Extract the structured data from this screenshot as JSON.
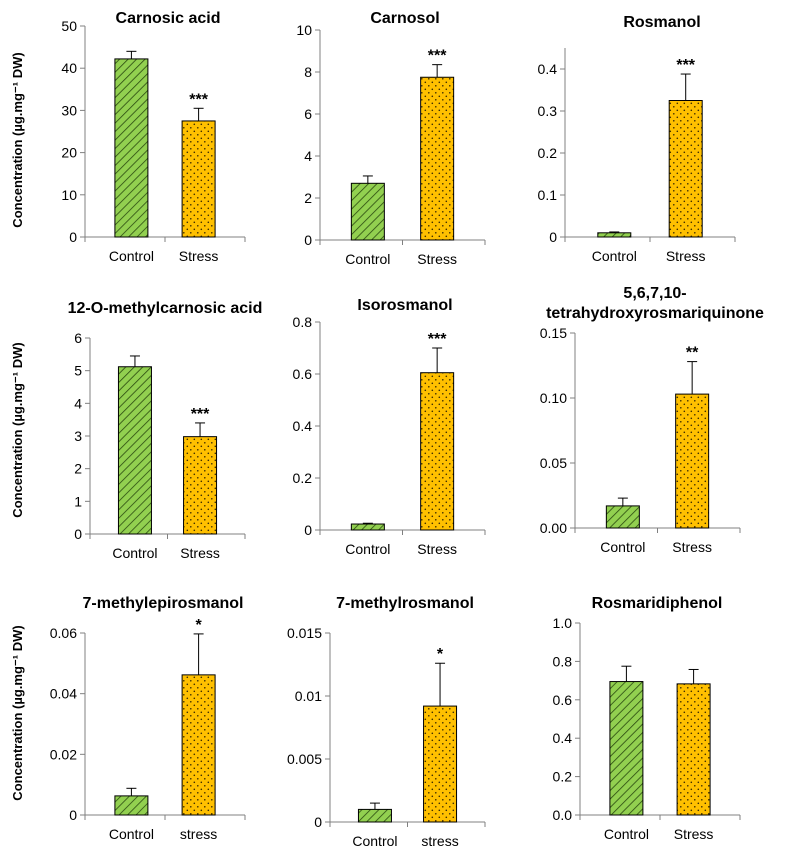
{
  "colors": {
    "control": "#92d050",
    "stress": "#ffc000",
    "outline": "#000000",
    "axis": "#808080"
  },
  "y_axis_label": "Concentration (µg.mg⁻¹ DW)",
  "chart_data": [
    {
      "type": "bar",
      "title": "Carnosic acid",
      "categories": [
        "Control",
        "Stress"
      ],
      "values": [
        42.2,
        27.5
      ],
      "errors": [
        1.8,
        3.0
      ],
      "significance": [
        "",
        "***"
      ],
      "ylim": [
        0,
        50
      ],
      "yticks": [
        "0",
        "10",
        "20",
        "30",
        "40",
        "50"
      ]
    },
    {
      "type": "bar",
      "title": "Carnosol",
      "categories": [
        "Control",
        "Stress"
      ],
      "values": [
        2.7,
        7.75
      ],
      "errors": [
        0.35,
        0.6
      ],
      "significance": [
        "",
        "***"
      ],
      "ylim": [
        0,
        10
      ],
      "yticks": [
        "0",
        "2",
        "4",
        "6",
        "8",
        "10"
      ]
    },
    {
      "type": "bar",
      "title": "Rosmanol",
      "categories": [
        "Control",
        "Stress"
      ],
      "values": [
        0.01,
        0.325
      ],
      "errors": [
        0.002,
        0.063
      ],
      "significance": [
        "",
        "***"
      ],
      "ylim": [
        0,
        0.45
      ],
      "yticks": [
        "0",
        "0.1",
        "0.2",
        "0.3",
        "0.4"
      ]
    },
    {
      "type": "bar",
      "title": "12-O-methylcarnosic acid",
      "categories": [
        "Control",
        "Stress"
      ],
      "values": [
        5.12,
        2.98
      ],
      "errors": [
        0.33,
        0.42
      ],
      "significance": [
        "",
        "***"
      ],
      "ylim": [
        0,
        6
      ],
      "yticks": [
        "0",
        "1",
        "2",
        "3",
        "4",
        "5",
        "6"
      ]
    },
    {
      "type": "bar",
      "title": "Isorosmanol",
      "categories": [
        "Control",
        "Stress"
      ],
      "values": [
        0.023,
        0.605
      ],
      "errors": [
        0.003,
        0.095
      ],
      "significance": [
        "",
        "***"
      ],
      "ylim": [
        0,
        0.8
      ],
      "yticks": [
        "0",
        "0.2",
        "0.4",
        "0.6",
        "0.8"
      ]
    },
    {
      "type": "bar",
      "title": "5,6,7,10-tetrahydroxyrosmariquinone",
      "title_lines": [
        "5,6,7,10-",
        "tetrahydroxyrosmariquinone"
      ],
      "categories": [
        "Control",
        "Stress"
      ],
      "values": [
        0.017,
        0.103
      ],
      "errors": [
        0.006,
        0.025
      ],
      "significance": [
        "",
        "**"
      ],
      "ylim": [
        0,
        0.15
      ],
      "yticks": [
        "0.00",
        "0.05",
        "0.10",
        "0.15"
      ]
    },
    {
      "type": "bar",
      "title": "7-methylepirosmanol",
      "categories": [
        "Control",
        "stress"
      ],
      "values": [
        0.0063,
        0.0462
      ],
      "errors": [
        0.0025,
        0.0135
      ],
      "significance": [
        "",
        "*"
      ],
      "ylim": [
        0,
        0.06
      ],
      "yticks": [
        "0",
        "0.02",
        "0.04",
        "0.06"
      ]
    },
    {
      "type": "bar",
      "title": "7-methylrosmanol",
      "categories": [
        "Control",
        "stress"
      ],
      "values": [
        0.001,
        0.0092
      ],
      "errors": [
        0.0005,
        0.0034
      ],
      "significance": [
        "",
        "*"
      ],
      "ylim": [
        0,
        0.015
      ],
      "yticks": [
        "0",
        "0.005",
        "0.01",
        "0.015"
      ]
    },
    {
      "type": "bar",
      "title": "Rosmaridiphenol",
      "categories": [
        "Control",
        "Stress"
      ],
      "values": [
        0.695,
        0.683
      ],
      "errors": [
        0.08,
        0.075
      ],
      "significance": [
        "",
        ""
      ],
      "ylim": [
        0,
        1.0
      ],
      "yticks": [
        "0.0",
        "0.2",
        "0.4",
        "0.6",
        "0.8",
        "1.0"
      ]
    }
  ]
}
